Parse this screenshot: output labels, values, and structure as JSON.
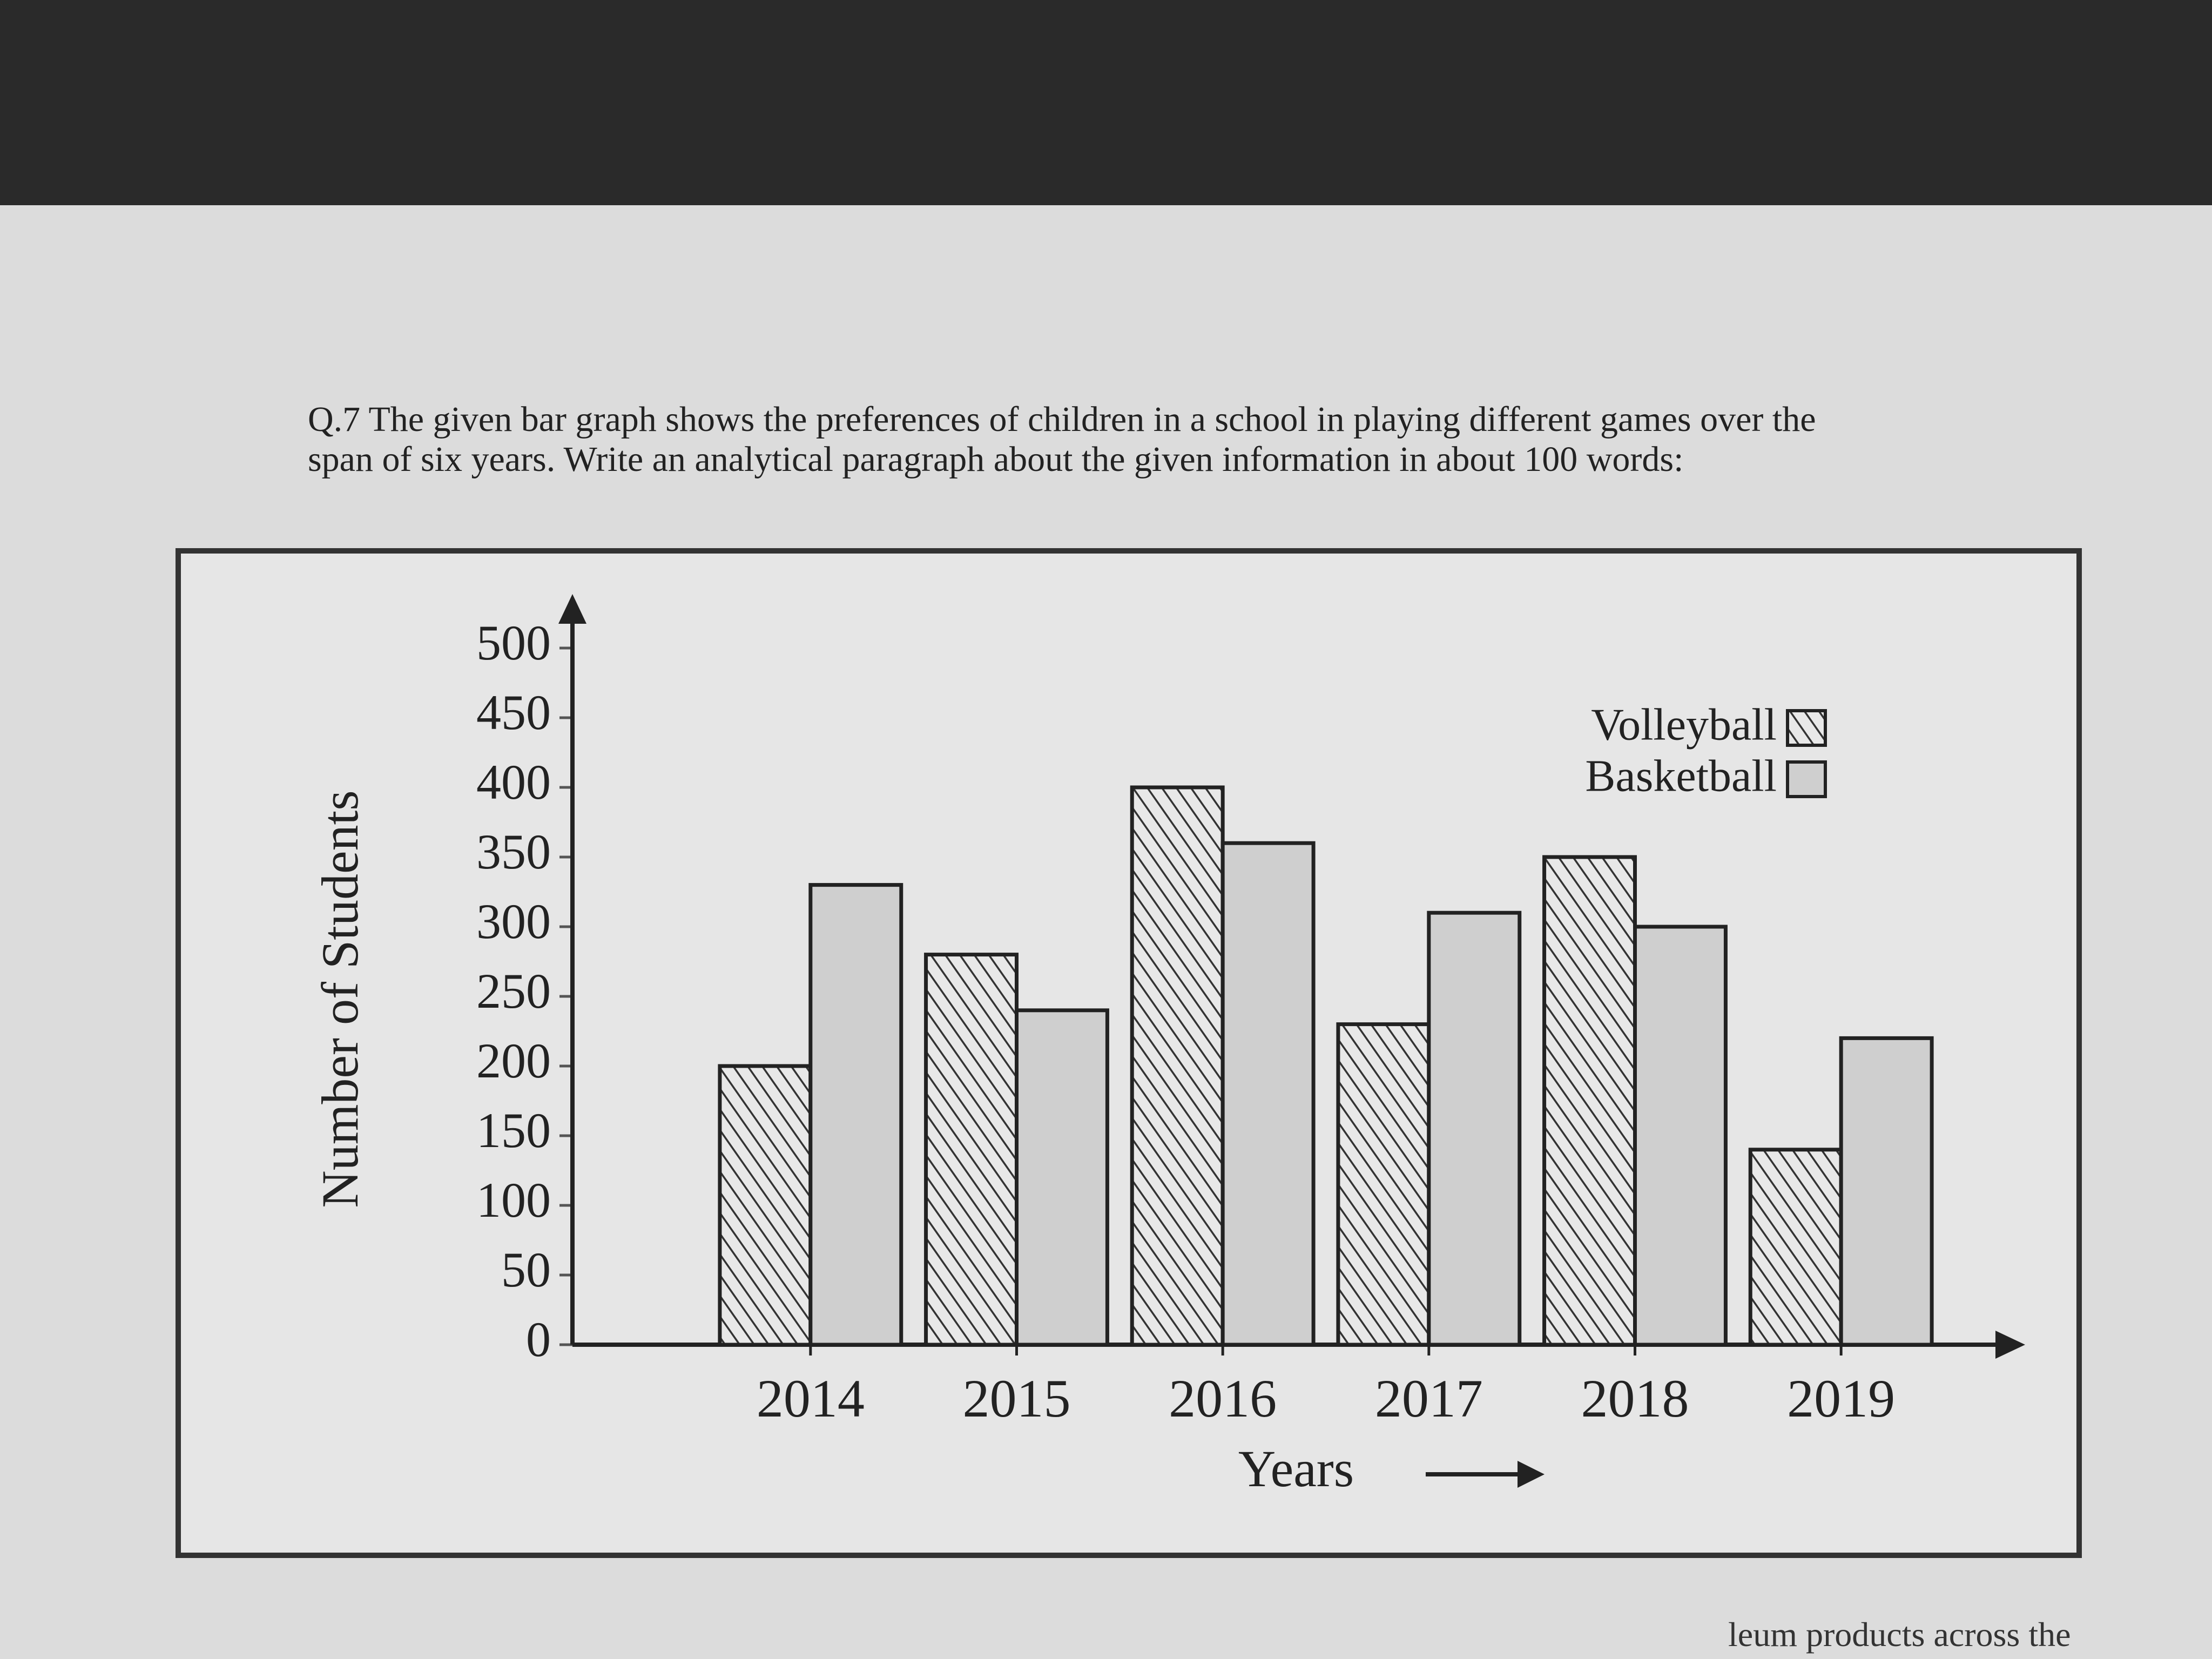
{
  "question": "Q.7 The given bar graph shows the preferences of children in a school in playing different games over the span of six years. Write an analytical paragraph about the given information in about 100 words:",
  "footer_fragment": "leum products across the",
  "chart_data": {
    "type": "bar",
    "ylabel": "Number of Students",
    "xlabel": "Years",
    "categories": [
      "2014",
      "2015",
      "2016",
      "2017",
      "2018",
      "2019"
    ],
    "series": [
      {
        "name": "Volleyball",
        "color": "#d9d9d9",
        "pattern": "hatch",
        "values": [
          200,
          280,
          400,
          230,
          350,
          140
        ]
      },
      {
        "name": "Basketball",
        "color": "#cfcfcf",
        "values": [
          330,
          240,
          360,
          310,
          300,
          220
        ]
      }
    ],
    "ylim": [
      0,
      500
    ],
    "yticks": [
      0,
      50,
      100,
      150,
      200,
      250,
      300,
      350,
      400,
      450,
      500
    ],
    "legend": "upper right"
  }
}
